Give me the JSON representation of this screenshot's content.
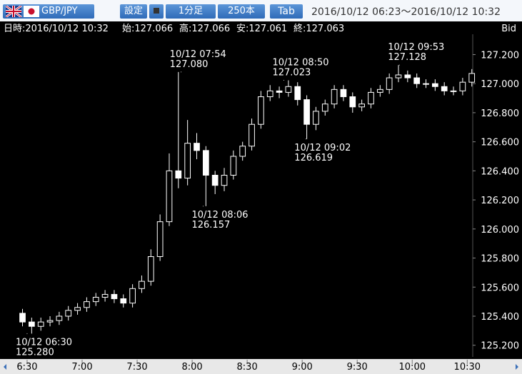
{
  "header": {
    "pair": "GBP/JPY",
    "settings": "設定",
    "timeframe": "1分足",
    "bars": "250本",
    "tab": "Tab",
    "range": "2016/10/12 06:23～2016/10/12 10:32"
  },
  "info": {
    "datetime": "日時:2016/10/12 10:32",
    "open": "始:127.066",
    "high": "高:127.066",
    "low": "安:127.061",
    "close": "終:127.063",
    "side": "Bid"
  },
  "chart_data": {
    "type": "candlestick",
    "x": [
      385,
      390,
      395,
      400,
      405,
      410,
      415,
      420,
      425,
      430,
      435,
      440,
      445,
      450,
      455,
      460,
      465,
      470,
      475,
      480,
      485,
      490,
      495,
      500,
      505,
      510,
      515,
      520,
      525,
      530,
      535,
      540,
      545,
      550,
      555,
      560,
      565,
      570,
      575,
      580,
      585,
      590,
      595,
      600,
      605,
      610,
      615,
      620,
      625,
      630
    ],
    "open": [
      125.42,
      125.36,
      125.33,
      125.36,
      125.37,
      125.4,
      125.44,
      125.46,
      125.5,
      125.53,
      125.55,
      125.52,
      125.49,
      125.59,
      125.64,
      125.81,
      126.05,
      126.4,
      126.35,
      126.59,
      126.54,
      126.37,
      126.3,
      126.37,
      126.5,
      126.57,
      126.72,
      126.91,
      126.95,
      126.94,
      126.98,
      126.89,
      126.72,
      126.81,
      126.86,
      126.96,
      126.91,
      126.84,
      126.86,
      126.94,
      126.96,
      127.04,
      127.06,
      127.04,
      127.0,
      127.0,
      126.98,
      126.95,
      126.95,
      127.01
    ],
    "high": [
      125.45,
      125.39,
      125.39,
      125.4,
      125.43,
      125.47,
      125.49,
      125.53,
      125.56,
      125.58,
      125.58,
      125.55,
      125.62,
      125.68,
      125.86,
      126.1,
      126.52,
      127.08,
      126.75,
      126.66,
      126.57,
      126.4,
      126.42,
      126.54,
      126.6,
      126.76,
      126.95,
      126.99,
      126.98,
      127.023,
      127.01,
      126.92,
      126.84,
      126.89,
      126.99,
      126.99,
      126.94,
      126.89,
      126.97,
      126.99,
      127.07,
      127.128,
      127.09,
      127.07,
      127.03,
      127.03,
      127.01,
      126.98,
      127.04,
      127.1
    ],
    "low": [
      125.33,
      125.28,
      125.3,
      125.33,
      125.34,
      125.37,
      125.41,
      125.43,
      125.47,
      125.5,
      125.49,
      125.46,
      125.46,
      125.56,
      125.61,
      125.78,
      126.02,
      126.28,
      126.3,
      126.48,
      126.157,
      126.24,
      126.26,
      126.34,
      126.47,
      126.54,
      126.69,
      126.88,
      126.9,
      126.91,
      126.85,
      126.619,
      126.68,
      126.78,
      126.83,
      126.88,
      126.8,
      126.81,
      126.83,
      126.91,
      126.93,
      127.01,
      127.01,
      126.97,
      126.97,
      126.95,
      126.92,
      126.92,
      126.92,
      126.98
    ],
    "close": [
      125.36,
      125.33,
      125.36,
      125.37,
      125.4,
      125.44,
      125.46,
      125.5,
      125.53,
      125.55,
      125.52,
      125.49,
      125.59,
      125.64,
      125.81,
      126.05,
      126.4,
      126.35,
      126.59,
      126.54,
      126.37,
      126.3,
      126.37,
      126.5,
      126.57,
      126.72,
      126.91,
      126.95,
      126.94,
      126.98,
      126.89,
      126.72,
      126.81,
      126.86,
      126.96,
      126.91,
      126.84,
      126.86,
      126.94,
      126.96,
      127.04,
      127.06,
      127.04,
      127.0,
      127.0,
      126.98,
      126.95,
      126.95,
      127.01,
      127.07
    ],
    "candle_minutes": 5,
    "xlim": [
      376,
      633
    ],
    "xticks": [
      {
        "value": 390,
        "label": "6:30"
      },
      {
        "value": 420,
        "label": "7:00"
      },
      {
        "value": 450,
        "label": "7:30"
      },
      {
        "value": 480,
        "label": "8:00"
      },
      {
        "value": 510,
        "label": "8:30"
      },
      {
        "value": 540,
        "label": "9:00"
      },
      {
        "value": 570,
        "label": "9:30"
      },
      {
        "value": 600,
        "label": "10:00"
      },
      {
        "value": 630,
        "label": "10:30"
      }
    ],
    "ylim": [
      125.12,
      127.33
    ],
    "yticks": [
      {
        "value": 125.2,
        "label": "125.200"
      },
      {
        "value": 125.4,
        "label": "125.400"
      },
      {
        "value": 125.6,
        "label": "125.600"
      },
      {
        "value": 125.8,
        "label": "125.800"
      },
      {
        "value": 126.0,
        "label": "126.000"
      },
      {
        "value": 126.2,
        "label": "126.200"
      },
      {
        "value": 126.4,
        "label": "126.400"
      },
      {
        "value": 126.6,
        "label": "126.600"
      },
      {
        "value": 126.8,
        "label": "126.800"
      },
      {
        "value": 127.0,
        "label": "127.000"
      },
      {
        "value": 127.2,
        "label": "127.200"
      }
    ],
    "annotations": [
      {
        "x": 390,
        "value": 125.28,
        "time": "10/12 06:30",
        "label": "125.280",
        "position": "below"
      },
      {
        "x": 474,
        "value": 127.08,
        "time": "10/12 07:54",
        "label": "127.080",
        "position": "above"
      },
      {
        "x": 486,
        "value": 126.157,
        "time": "10/12 08:06",
        "label": "126.157",
        "position": "below"
      },
      {
        "x": 530,
        "value": 127.023,
        "time": "10/12 08:50",
        "label": "127.023",
        "position": "above"
      },
      {
        "x": 542,
        "value": 126.619,
        "time": "10/12 09:02",
        "label": "126.619",
        "position": "below"
      },
      {
        "x": 593,
        "value": 127.128,
        "time": "10/12 09:53",
        "label": "127.128",
        "position": "above"
      }
    ]
  }
}
